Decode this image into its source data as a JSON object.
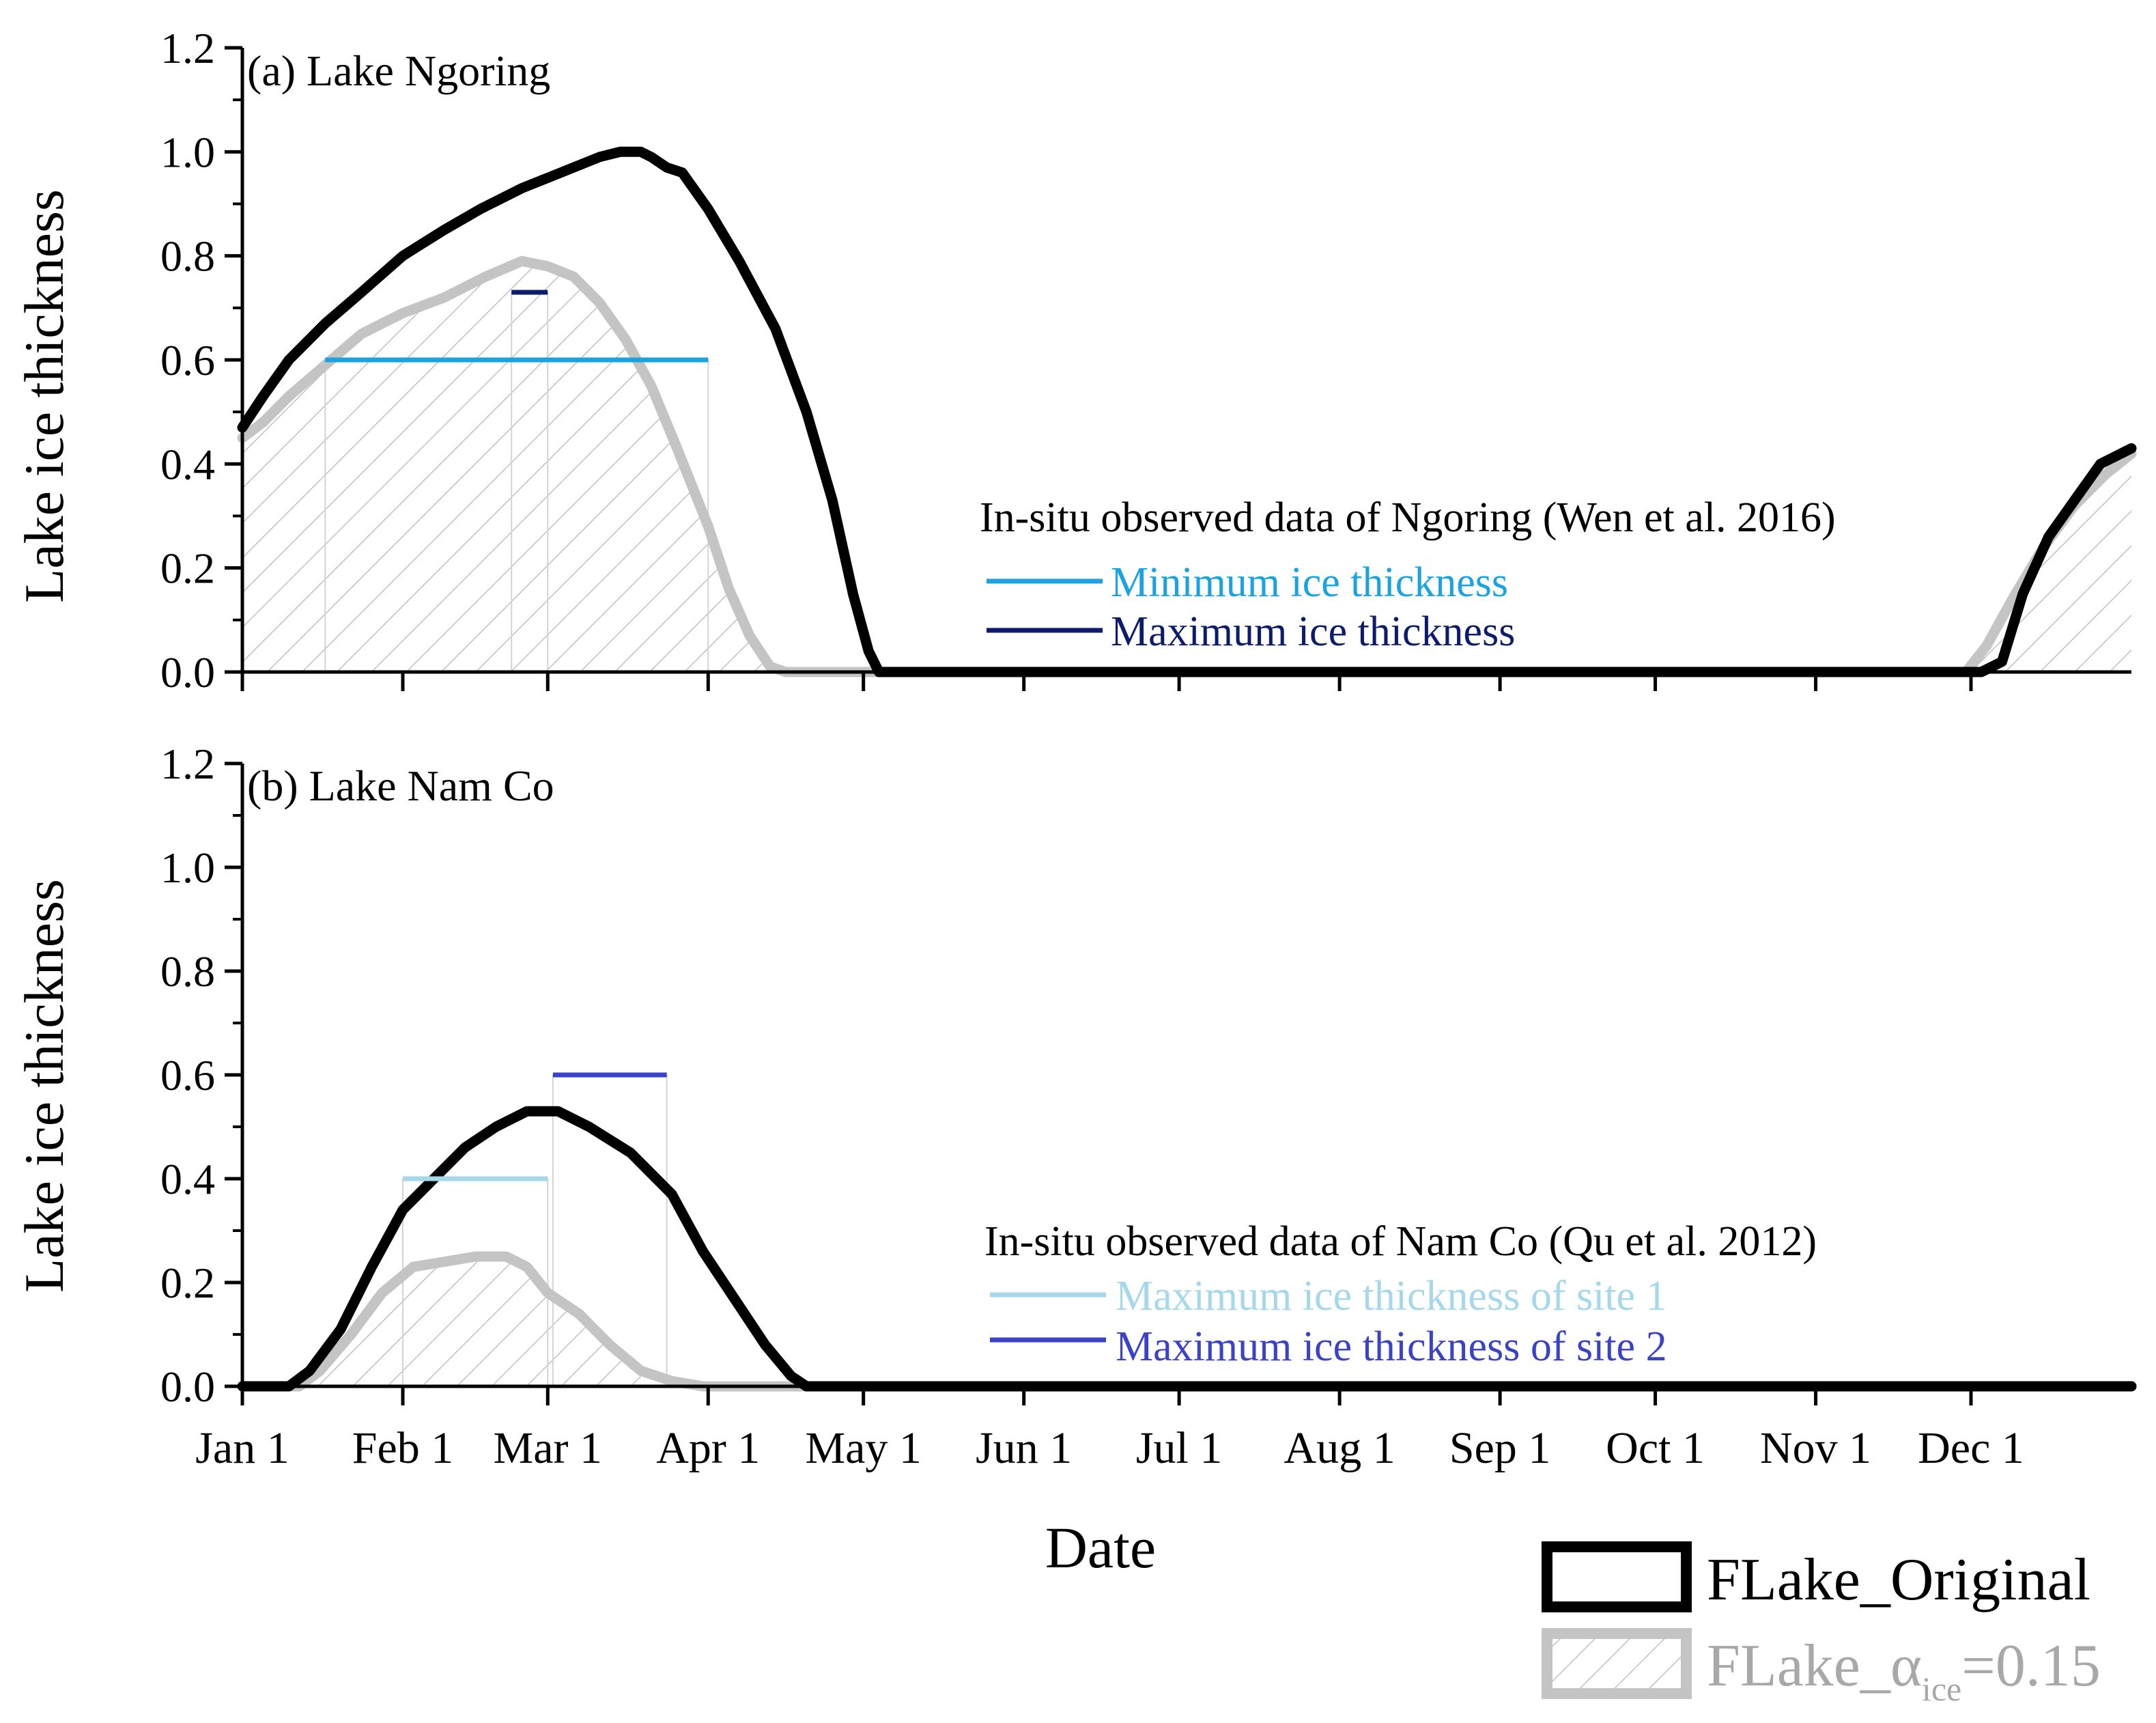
{
  "chart_data": {
    "x_axis": {
      "label": "Date",
      "ticks": [
        "Jan 1",
        "Feb 1",
        "Mar 1",
        "Apr 1",
        "May 1",
        "Jun 1",
        "Jul 1",
        "Aug 1",
        "Sep 1",
        "Oct 1",
        "Nov 1",
        "Dec 1"
      ],
      "tick_days": [
        1,
        32,
        60,
        91,
        121,
        152,
        182,
        213,
        244,
        274,
        305,
        335
      ],
      "xlim": [
        1,
        366
      ]
    },
    "legend": {
      "original": "FLake_Original",
      "alpha_prefix": "FLake_α",
      "alpha_sub": "ice",
      "alpha_suffix": "=0.15",
      "colors": {
        "original": "#000000",
        "alpha": "#c4c4c4"
      }
    },
    "panels": [
      {
        "title": "(a) Lake Ngoring",
        "type": "line",
        "ylabel": "Lake ice thickness",
        "ylim": [
          0,
          1.2
        ],
        "yticks": [
          "0.0",
          "0.2",
          "0.4",
          "0.6",
          "0.8",
          "1.0",
          "1.2"
        ],
        "series": [
          {
            "name": "FLake_Original",
            "color": "#000000",
            "points": [
              [
                1,
                0.47
              ],
              [
                5,
                0.53
              ],
              [
                10,
                0.6
              ],
              [
                17,
                0.67
              ],
              [
                24,
                0.73
              ],
              [
                32,
                0.8
              ],
              [
                40,
                0.85
              ],
              [
                47,
                0.89
              ],
              [
                55,
                0.93
              ],
              [
                60,
                0.95
              ],
              [
                65,
                0.97
              ],
              [
                70,
                0.99
              ],
              [
                74,
                1.0
              ],
              [
                78,
                1.0
              ],
              [
                80,
                0.99
              ],
              [
                83,
                0.97
              ],
              [
                86,
                0.96
              ],
              [
                91,
                0.89
              ],
              [
                97,
                0.79
              ],
              [
                104,
                0.66
              ],
              [
                110,
                0.5
              ],
              [
                115,
                0.33
              ],
              [
                119,
                0.15
              ],
              [
                122,
                0.04
              ],
              [
                124,
                0.0
              ],
              [
                337,
                0.0
              ],
              [
                341,
                0.02
              ],
              [
                345,
                0.15
              ],
              [
                350,
                0.26
              ],
              [
                355,
                0.33
              ],
              [
                360,
                0.4
              ],
              [
                366,
                0.43
              ]
            ]
          },
          {
            "name": "FLake_α_ice=0.15",
            "color": "#c4c4c4",
            "hatched": true,
            "points": [
              [
                1,
                0.45
              ],
              [
                5,
                0.48
              ],
              [
                10,
                0.53
              ],
              [
                17,
                0.59
              ],
              [
                24,
                0.65
              ],
              [
                32,
                0.69
              ],
              [
                40,
                0.72
              ],
              [
                48,
                0.76
              ],
              [
                55,
                0.79
              ],
              [
                60,
                0.78
              ],
              [
                65,
                0.76
              ],
              [
                70,
                0.71
              ],
              [
                75,
                0.64
              ],
              [
                80,
                0.55
              ],
              [
                85,
                0.43
              ],
              [
                91,
                0.28
              ],
              [
                95,
                0.16
              ],
              [
                99,
                0.07
              ],
              [
                103,
                0.01
              ],
              [
                106,
                0.0
              ],
              [
                334,
                0.0
              ],
              [
                338,
                0.05
              ],
              [
                343,
                0.14
              ],
              [
                349,
                0.24
              ],
              [
                355,
                0.32
              ],
              [
                361,
                0.38
              ],
              [
                366,
                0.42
              ]
            ]
          }
        ],
        "observations": {
          "heading": "In-situ observed data of Ngoring (Wen et al. 2016)",
          "items": [
            {
              "label": "Minimum ice thickness",
              "color": "#1aa3e0",
              "x_start": 17,
              "x_end": 91,
              "value": 0.6
            },
            {
              "label": "Maximum ice thickness",
              "color": "#0d1b6e",
              "x_start": 53,
              "x_end": 60,
              "value": 0.73
            }
          ]
        }
      },
      {
        "title": "(b) Lake Nam Co",
        "type": "line",
        "ylabel": "Lake ice thickness",
        "ylim": [
          0,
          1.2
        ],
        "yticks": [
          "0.0",
          "0.2",
          "0.4",
          "0.6",
          "0.8",
          "1.0",
          "1.2"
        ],
        "series": [
          {
            "name": "FLake_Original",
            "color": "#000000",
            "points": [
              [
                1,
                0.0
              ],
              [
                10,
                0.0
              ],
              [
                14,
                0.03
              ],
              [
                20,
                0.11
              ],
              [
                26,
                0.23
              ],
              [
                32,
                0.34
              ],
              [
                38,
                0.4
              ],
              [
                44,
                0.46
              ],
              [
                50,
                0.5
              ],
              [
                56,
                0.53
              ],
              [
                62,
                0.53
              ],
              [
                68,
                0.5
              ],
              [
                76,
                0.45
              ],
              [
                84,
                0.37
              ],
              [
                90,
                0.26
              ],
              [
                96,
                0.17
              ],
              [
                102,
                0.08
              ],
              [
                107,
                0.02
              ],
              [
                110,
                0.0
              ],
              [
                366,
                0.0
              ]
            ]
          },
          {
            "name": "FLake_α_ice=0.15",
            "color": "#c4c4c4",
            "hatched": true,
            "points": [
              [
                1,
                0.0
              ],
              [
                12,
                0.0
              ],
              [
                16,
                0.03
              ],
              [
                22,
                0.1
              ],
              [
                28,
                0.18
              ],
              [
                34,
                0.23
              ],
              [
                40,
                0.24
              ],
              [
                46,
                0.25
              ],
              [
                52,
                0.25
              ],
              [
                56,
                0.23
              ],
              [
                60,
                0.18
              ],
              [
                66,
                0.14
              ],
              [
                72,
                0.08
              ],
              [
                78,
                0.03
              ],
              [
                84,
                0.01
              ],
              [
                90,
                0.0
              ],
              [
                366,
                0.0
              ]
            ]
          }
        ],
        "observations": {
          "heading": "In-situ observed data of Nam Co (Qu et al. 2012)",
          "items": [
            {
              "label": "Maximum ice thickness of site 1",
              "color": "#a6d8ec",
              "x_start": 32,
              "x_end": 60,
              "value": 0.4
            },
            {
              "label": "Maximum ice thickness of site 2",
              "color": "#3a43c8",
              "x_start": 61,
              "x_end": 83,
              "value": 0.6
            }
          ]
        }
      }
    ]
  }
}
